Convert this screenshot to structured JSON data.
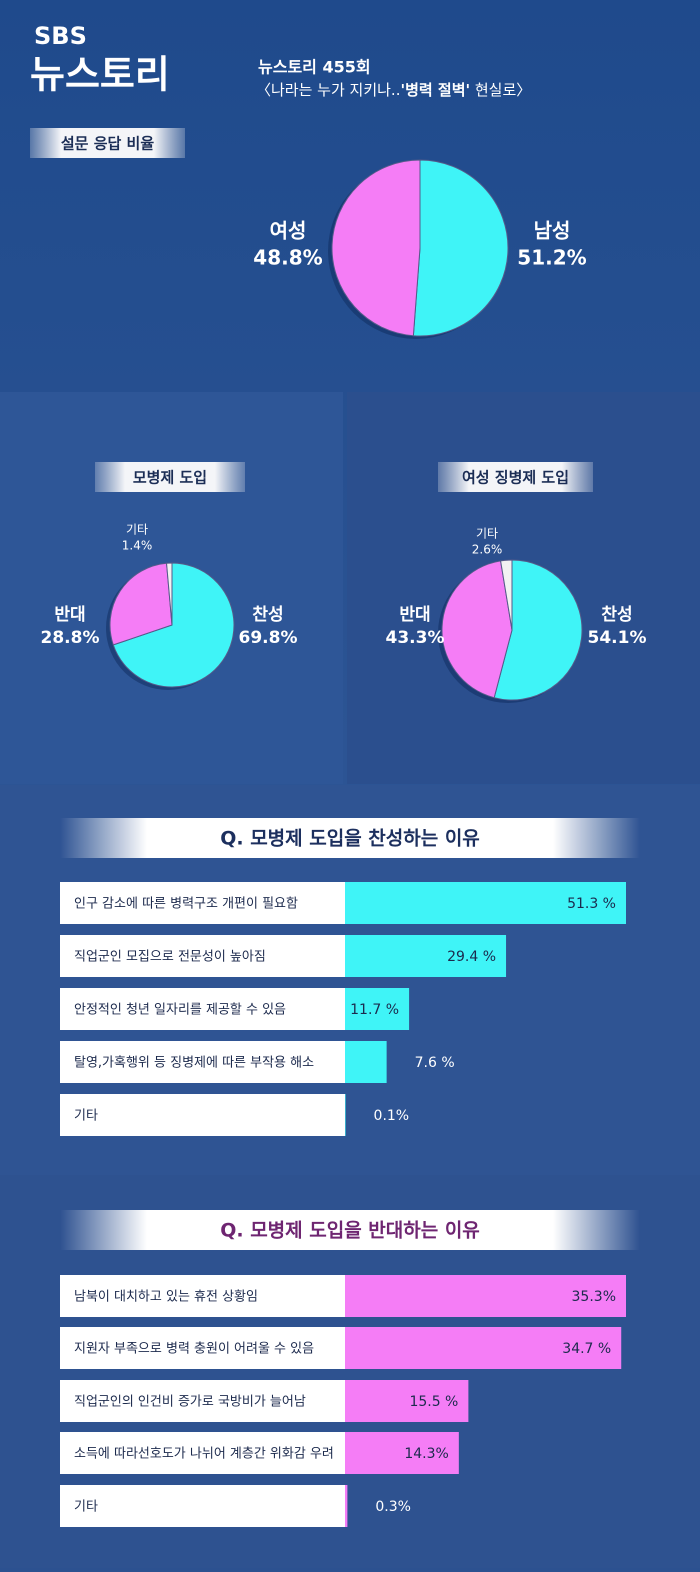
{
  "header": {
    "logo": "SBS",
    "program": "뉴스토리",
    "episode": "뉴스토리 455회",
    "subtitle_before": "〈나라는 누가 지키나..",
    "subtitle_bold": "'병력 절벽'",
    "subtitle_after": " 현실로〉"
  },
  "chart_data": [
    {
      "type": "pie",
      "title": "설문 응답 비율",
      "categories": [
        "남성",
        "여성"
      ],
      "values": [
        51.2,
        48.8
      ],
      "value_labels": [
        "51.2%",
        "48.8%"
      ],
      "colors": [
        "#3ff4f7",
        "#f57df6"
      ]
    },
    {
      "type": "pie",
      "title": "모병제 도입",
      "categories": [
        "찬성",
        "반대",
        "기타"
      ],
      "values": [
        69.8,
        28.8,
        1.4
      ],
      "value_labels": [
        "69.8%",
        "28.8%",
        "1.4%"
      ],
      "colors": [
        "#3ff4f7",
        "#f57df6",
        "#f2f2f2"
      ]
    },
    {
      "type": "pie",
      "title": "여성 징병제 도입",
      "categories": [
        "찬성",
        "반대",
        "기타"
      ],
      "values": [
        54.1,
        43.3,
        2.6
      ],
      "value_labels": [
        "54.1%",
        "43.3%",
        "2.6%"
      ],
      "colors": [
        "#3ff4f7",
        "#f57df6",
        "#f2f2f2"
      ]
    },
    {
      "type": "bar",
      "orientation": "horizontal",
      "title": "Q. 모병제 도입을 찬성하는 이유",
      "categories": [
        "인구 감소에 따른 병력구조 개편이 필요함",
        "직업군인 모집으로 전문성이 높아짐",
        "안정적인 청년 일자리를 제공할 수 있음",
        "탈영,가혹행위 등 징병제에 따른 부작용 해소",
        "기타"
      ],
      "values": [
        51.3,
        29.4,
        11.7,
        7.6,
        0.1
      ],
      "value_labels": [
        "51.3 %",
        "29.4 %",
        "11.7 %",
        "7.6 %",
        "0.1%"
      ],
      "color": "#3ff4f7"
    },
    {
      "type": "bar",
      "orientation": "horizontal",
      "title": "Q. 모병제 도입을 반대하는 이유",
      "categories": [
        "남북이 대치하고 있는 휴전 상황임",
        "지원자 부족으로 병력 충원이 어려울 수 있음",
        "직업군인의 인건비 증가로 국방비가 늘어남",
        "소득에 따라선호도가 나뉘어 계층간 위화감 우려",
        "기타"
      ],
      "values": [
        35.3,
        34.7,
        15.5,
        14.3,
        0.3
      ],
      "value_labels": [
        "35.3%",
        "34.7 %",
        "15.5 %",
        "14.3%",
        "0.3%"
      ],
      "color": "#f57df6"
    }
  ]
}
